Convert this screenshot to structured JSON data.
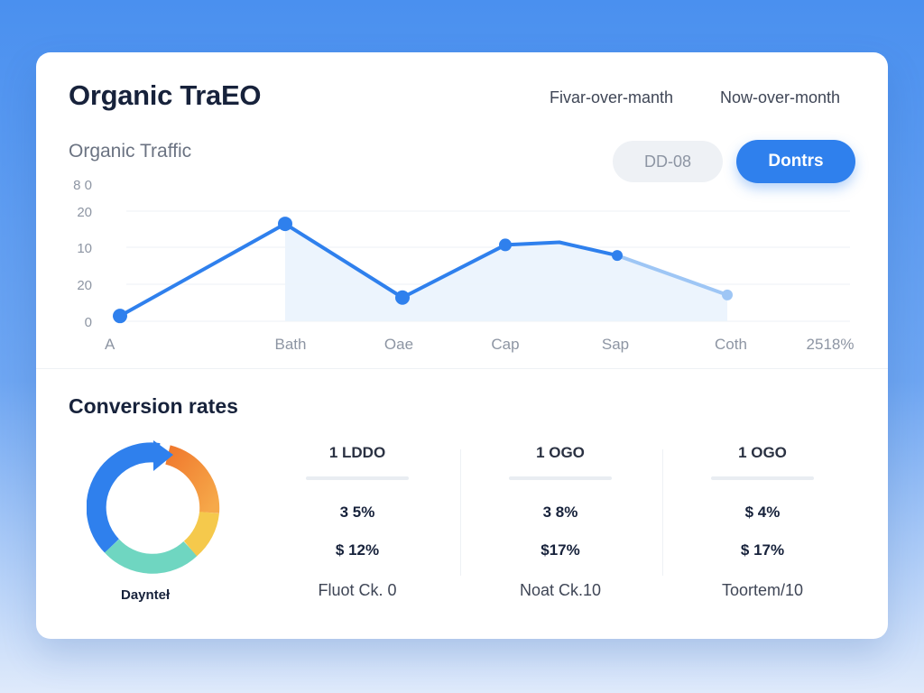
{
  "header": {
    "title": "Organic TraEO",
    "period_1": "Fivar-over-manth",
    "period_2": "Now-over-month"
  },
  "traffic": {
    "subtitle": "Organic Traffic",
    "filter_label": "DD-08",
    "primary_button": "Dontrs"
  },
  "chart_data": {
    "type": "line",
    "title": "",
    "y_tick_labels": [
      "0",
      "20",
      "10",
      "20",
      "8 0"
    ],
    "x_tick_labels": [
      "A",
      "Bath",
      "Oae",
      "Cap",
      "Sap",
      "Coth",
      "2518%"
    ],
    "series": [
      {
        "values": [
          {
            "x": "A",
            "y": 2
          },
          {
            "x": "Bath",
            "y": 37
          },
          {
            "x": "Oae",
            "y": 9
          },
          {
            "x": "Cap",
            "y": 29
          },
          {
            "x": "",
            "y": 30
          },
          {
            "x": "Sap",
            "y": 25
          },
          {
            "x": "Coth",
            "y": 10
          }
        ]
      }
    ],
    "colors": {
      "line": "#2f80ed",
      "line_faded": "#9ec6f5",
      "area": "#eaf3fd",
      "grid": "#eef1f5"
    },
    "grid": true,
    "ylim": [
      0,
      48
    ]
  },
  "conversion": {
    "title": "Conversion rates",
    "donut_label": "Daynteł",
    "donut_colors": [
      "#2f80ed",
      "#f58a3a",
      "#f5c94c",
      "#6fd6c1"
    ],
    "columns": [
      {
        "head": "1 LDDO",
        "v1": "3 5%",
        "v2": "$ 12%",
        "foot": "Fluot Ck. 0"
      },
      {
        "head": "1 OGO",
        "v1": "3 8%",
        "v2": "$17%",
        "foot": "Noat Ck.10"
      },
      {
        "head": "1 OGO",
        "v1": "$ 4%",
        "v2": "$ 17%",
        "foot": "Toortem/10"
      }
    ]
  }
}
